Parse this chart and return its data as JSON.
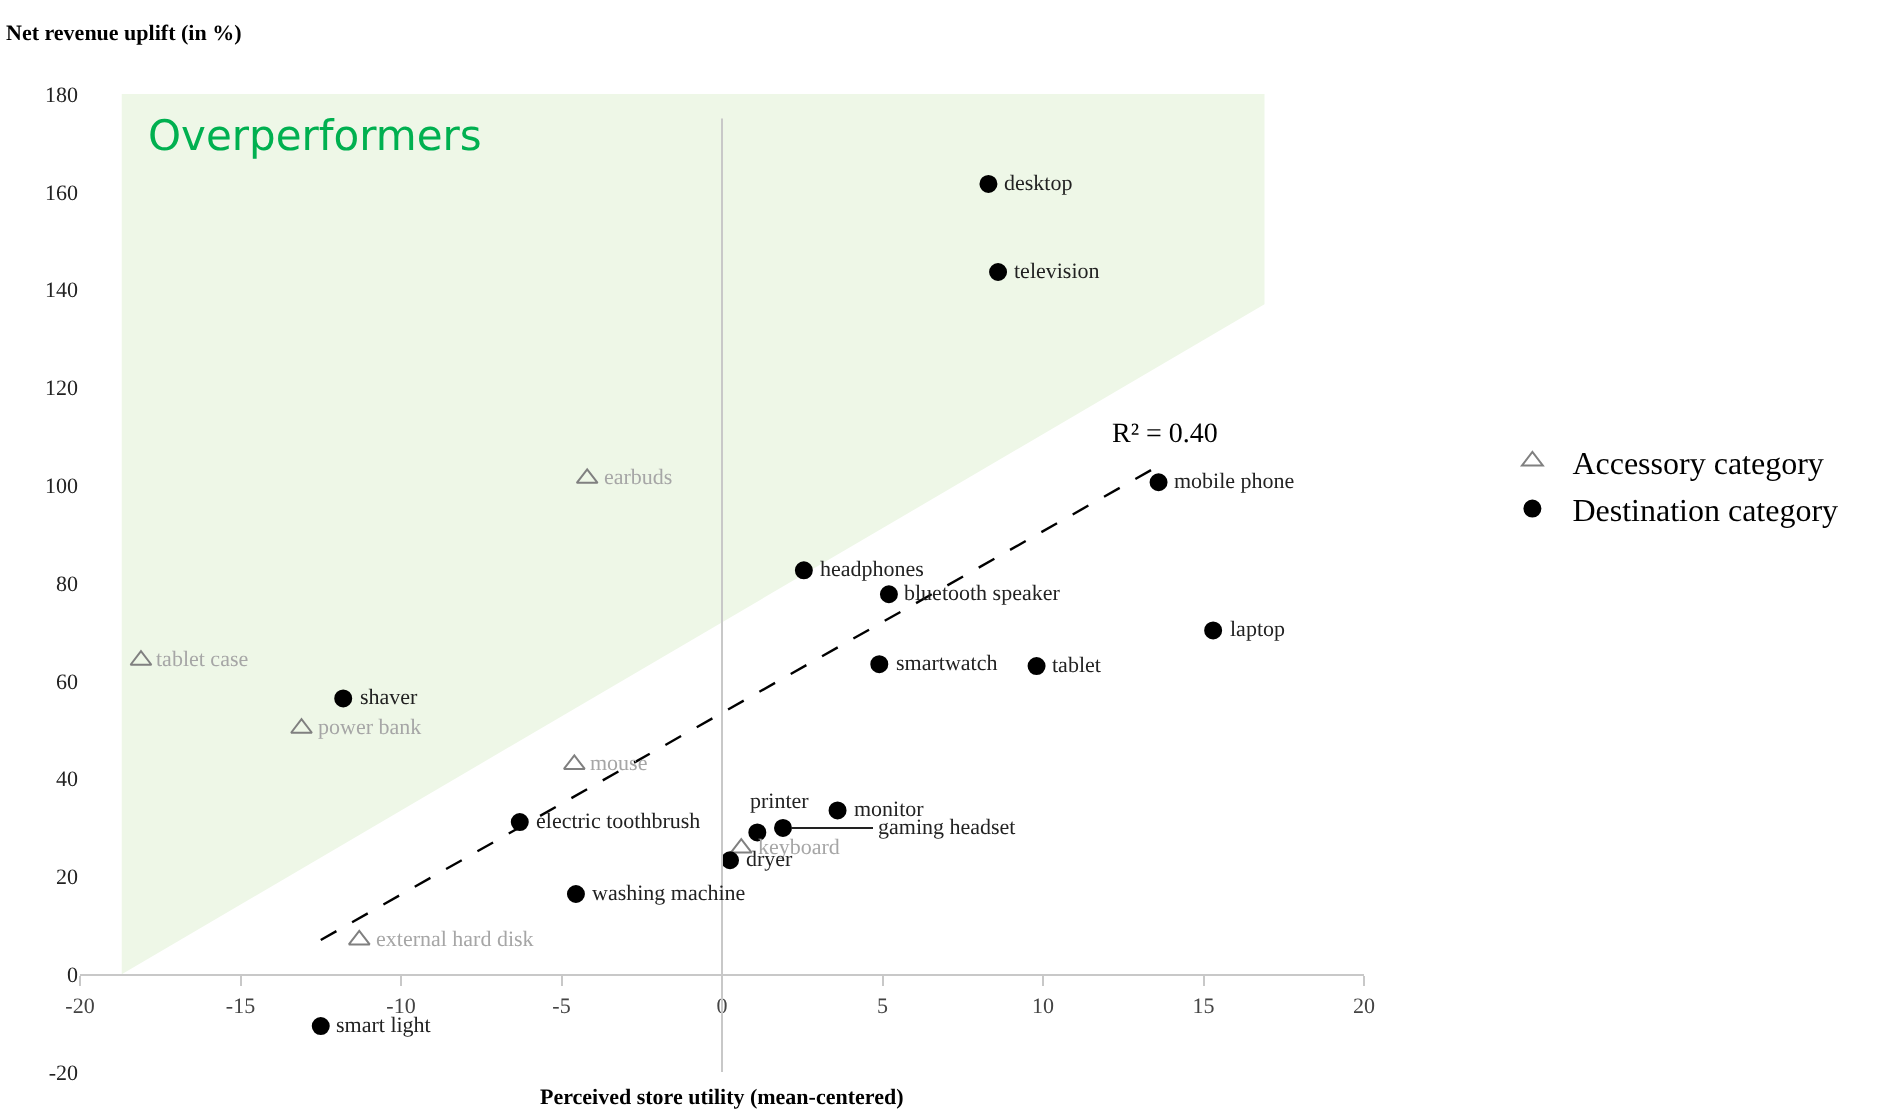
{
  "chart_data": {
    "type": "scatter",
    "xlabel": "Perceived store utility (mean-centered)",
    "ylabel": "Net revenue uplift (in %)",
    "xlim": [
      -20,
      20
    ],
    "xticks": [
      -20,
      -15,
      -10,
      -5,
      0,
      5,
      10,
      15,
      20
    ],
    "ylim": [
      -20,
      180
    ],
    "yticks": [
      -20,
      0,
      20,
      40,
      60,
      80,
      100,
      120,
      140,
      160,
      180
    ],
    "grid": false,
    "legend": "right",
    "ref_lines": [
      {
        "axis": "x",
        "value": 0,
        "color": "#c8c8c8"
      }
    ],
    "series": [
      {
        "name": "Accessory category",
        "color": "#808080",
        "marker": "triangle",
        "x": [
          -4.2,
          -18.1,
          -13.1,
          -4.6,
          0.6,
          -11.3
        ],
        "values": [
          101.4,
          64.2,
          50.3,
          42.9,
          25.8,
          7.0
        ]
      },
      {
        "name": "Destination category",
        "color": "#000000",
        "marker": "circle",
        "x": [
          8.3,
          8.6,
          13.6,
          2.55,
          5.2,
          15.3,
          4.9,
          9.8,
          -11.8,
          -6.3,
          3.6,
          1.1,
          1.9,
          0.25,
          -4.55,
          -12.5
        ],
        "values": [
          161.6,
          143.6,
          100.6,
          82.6,
          77.7,
          70.3,
          63.4,
          63.0,
          56.4,
          31.1,
          33.5,
          29.0,
          29.9,
          23.3,
          16.4,
          -10.6
        ]
      },
      {
        "type": "line",
        "color": "#000000",
        "marker": "none",
        "line_style": "dashed",
        "x": [
          -12.5,
          13.8
        ],
        "values": [
          7.0,
          104.7
        ]
      }
    ],
    "annotations": [
      "Overperformers",
      {
        "text": "R² = 0.40",
        "x": 13.8,
        "y": 104.7
      },
      {
        "text": "earbuds",
        "x": -4.2,
        "y": 101.4
      },
      {
        "text": "tablet case",
        "x": -18.1,
        "y": 64.2
      },
      {
        "text": "power bank",
        "x": -13.1,
        "y": 50.3
      },
      {
        "text": "mouse",
        "x": -4.6,
        "y": 42.9
      },
      {
        "text": "keyboard",
        "x": 0.6,
        "y": 25.8
      },
      {
        "text": "external hard disk",
        "x": -11.3,
        "y": 7.0
      },
      {
        "text": "desktop",
        "x": 8.3,
        "y": 161.6
      },
      {
        "text": "television",
        "x": 8.6,
        "y": 143.6
      },
      {
        "text": "mobile phone",
        "x": 13.6,
        "y": 100.6
      },
      {
        "text": "headphones",
        "x": 2.55,
        "y": 82.6
      },
      {
        "text": "bluetooth speaker",
        "x": 5.2,
        "y": 77.7
      },
      {
        "text": "laptop",
        "x": 15.3,
        "y": 70.3
      },
      {
        "text": "smartwatch",
        "x": 4.9,
        "y": 63.4
      },
      {
        "text": "tablet",
        "x": 9.8,
        "y": 63.0
      },
      {
        "text": "shaver",
        "x": -11.8,
        "y": 56.4
      },
      {
        "text": "electric toothbrush",
        "x": -6.3,
        "y": 31.1
      },
      {
        "text": "monitor",
        "x": 3.6,
        "y": 33.5
      },
      {
        "text": "printer",
        "x": 1.1,
        "y": 29.0
      },
      {
        "text": "gaming headset",
        "x": 1.9,
        "y": 29.9
      },
      {
        "text": "dryer",
        "x": 0.25,
        "y": 23.3
      },
      {
        "text": "washing machine",
        "x": -4.55,
        "y": 16.4
      },
      {
        "text": "smart light",
        "x": -12.5,
        "y": -10.6
      }
    ]
  }
}
